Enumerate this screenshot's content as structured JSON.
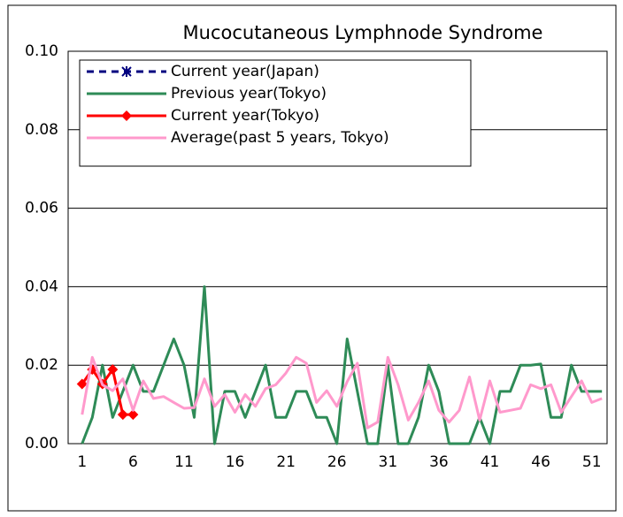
{
  "chart_data": {
    "type": "line",
    "title": "Mucocutaneous Lymphnode Syndrome",
    "categories": [
      "1",
      null,
      null,
      null,
      null,
      "6",
      null,
      null,
      null,
      null,
      "11",
      null,
      null,
      null,
      null,
      "16",
      null,
      null,
      null,
      null,
      "21",
      null,
      null,
      null,
      null,
      "26",
      null,
      null,
      null,
      null,
      "31",
      null,
      null,
      null,
      null,
      "36",
      null,
      null,
      null,
      null,
      "41",
      null,
      null,
      null,
      null,
      "46",
      null,
      null,
      null,
      null,
      "51",
      null
    ],
    "ylim": [
      0,
      0.1
    ],
    "yticks": [
      {
        "value": 0,
        "label": "0.00"
      },
      0.02,
      0.04,
      0.06,
      0.08,
      {
        "value": 0.1,
        "label": "0.10"
      }
    ],
    "grid": true,
    "legend": "upper left",
    "series": [
      {
        "name": "Current year(Japan)",
        "color": "#000080",
        "marker": "asterisk",
        "dash": true,
        "values": [
          null,
          null,
          null,
          null,
          null,
          null,
          null,
          null,
          null,
          null,
          null,
          null,
          null,
          null,
          null,
          null,
          null,
          null,
          null,
          null,
          null,
          null,
          null,
          null,
          null,
          null,
          null,
          null,
          null,
          null,
          null,
          null,
          null,
          null,
          null,
          null,
          null,
          null,
          null,
          null,
          null,
          null,
          null,
          null,
          null,
          null,
          null,
          null,
          null,
          null,
          null,
          null
        ]
      },
      {
        "name": "Previous year(Tokyo)",
        "color": "#2e8b57",
        "values": [
          0,
          0.0067,
          0.02,
          0.0067,
          0.0133,
          0.02,
          0.0133,
          0.0133,
          0.02,
          0.0267,
          0.02,
          0.0067,
          0.04,
          0,
          0.0133,
          0.0133,
          0.0067,
          0.0133,
          0.02,
          0.0067,
          0.0067,
          0.0133,
          0.0133,
          0.0067,
          0.0067,
          0,
          0.0267,
          0.0133,
          0,
          0,
          0.02,
          0,
          0,
          0.0067,
          0.02,
          0.0133,
          0,
          0,
          0,
          0.0067,
          0,
          0.0133,
          0.0133,
          0.02,
          0.02,
          0.0203,
          0.0067,
          0.0067,
          0.02,
          0.0133,
          0.0133,
          0.0133
        ]
      },
      {
        "name": "Current year(Tokyo)",
        "color": "#ff0000",
        "marker": "diamond",
        "values": [
          0.0152,
          0.0189,
          0.0152,
          0.0189,
          0.0074,
          0.0074,
          null,
          null,
          null,
          null,
          null,
          null,
          null,
          null,
          null,
          null,
          null,
          null,
          null,
          null,
          null,
          null,
          null,
          null,
          null,
          null,
          null,
          null,
          null,
          null,
          null,
          null,
          null,
          null,
          null,
          null,
          null,
          null,
          null,
          null,
          null,
          null,
          null,
          null,
          null,
          null,
          null,
          null,
          null,
          null,
          null,
          null
        ]
      },
      {
        "name": "Average(past 5 years, Tokyo)",
        "color": "#ff99cc",
        "values": [
          0.0074,
          0.022,
          0.015,
          0.0135,
          0.0165,
          0.0085,
          0.016,
          0.0115,
          0.012,
          0.0105,
          0.009,
          0.0092,
          0.0165,
          0.0095,
          0.0125,
          0.008,
          0.0125,
          0.0095,
          0.014,
          0.015,
          0.018,
          0.022,
          0.0205,
          0.0105,
          0.0135,
          0.0095,
          0.0158,
          0.0205,
          0.004,
          0.0055,
          0.022,
          0.015,
          0.006,
          0.0105,
          0.016,
          0.0085,
          0.0055,
          0.0085,
          0.017,
          0.006,
          0.016,
          0.008,
          0.0085,
          0.009,
          0.015,
          0.014,
          0.015,
          0.008,
          0.012,
          0.016,
          0.0105,
          0.0115
        ]
      }
    ]
  }
}
